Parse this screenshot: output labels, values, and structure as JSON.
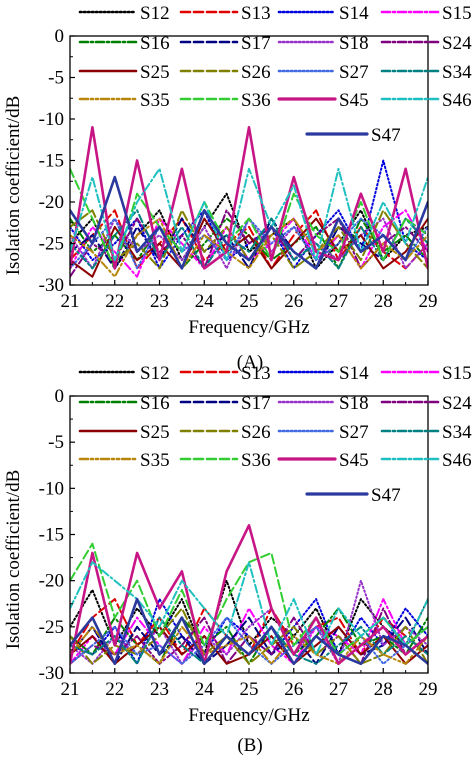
{
  "chart_data": [
    {
      "panel_label": "(A)",
      "type": "line",
      "xlabel": "Frequency/GHz",
      "ylabel": "Isolation coefficient/dB",
      "xlim": [
        21,
        29
      ],
      "ylim": [
        -30,
        0
      ],
      "x_ticks": [
        "21",
        "22",
        "23",
        "24",
        "25",
        "26",
        "27",
        "28",
        "29"
      ],
      "y_ticks": [
        "0",
        "-5",
        "-10",
        "-15",
        "-20",
        "-25",
        "-30"
      ],
      "grid": false,
      "legend_position": "top (inside plot)",
      "x": [
        21.0,
        21.5,
        22.0,
        22.5,
        23.0,
        23.5,
        24.0,
        24.5,
        25.0,
        25.5,
        26.0,
        26.5,
        27.0,
        27.5,
        28.0,
        28.5,
        29.0
      ],
      "series": [
        {
          "name": "S12",
          "color": "#000000",
          "dash": "dot",
          "values": [
            -25,
            -22,
            -28,
            -24,
            -21,
            -27,
            -23,
            -19,
            -26,
            -24,
            -22,
            -28,
            -25,
            -21,
            -27,
            -24,
            -23
          ]
        },
        {
          "name": "S13",
          "color": "#e00000",
          "dash": "dash",
          "values": [
            -27,
            -24,
            -21,
            -28,
            -25,
            -22,
            -27,
            -25,
            -23,
            -28,
            -24,
            -21,
            -27,
            -23,
            -26,
            -28,
            -25
          ]
        },
        {
          "name": "S14",
          "color": "#0000e0",
          "dash": "dot",
          "values": [
            -23,
            -27,
            -25,
            -22,
            -28,
            -24,
            -21,
            -27,
            -25,
            -23,
            -28,
            -24,
            -21,
            -26,
            -15,
            -25,
            -27
          ]
        },
        {
          "name": "S15",
          "color": "#ff00ff",
          "dash": "dashdot",
          "values": [
            -28,
            -23,
            -26,
            -29,
            -22,
            -25,
            -28,
            -23,
            -27,
            -25,
            -22,
            -27,
            -24,
            -28,
            -23,
            -21,
            -26
          ]
        },
        {
          "name": "S16",
          "color": "#008000",
          "dash": "dashdot",
          "values": [
            -22,
            -26,
            -24,
            -27,
            -23,
            -28,
            -25,
            -22,
            -24,
            -27,
            -25,
            -23,
            -28,
            -22,
            -26,
            -24,
            -27
          ]
        },
        {
          "name": "S17",
          "color": "#000080",
          "dash": "dash",
          "values": [
            -26,
            -24,
            -28,
            -23,
            -27,
            -22,
            -26,
            -24,
            -28,
            -22,
            -26,
            -28,
            -23,
            -25,
            -27,
            -22,
            -24
          ]
        },
        {
          "name": "S18",
          "color": "#9932cc",
          "dash": "dot",
          "values": [
            -24,
            -28,
            -22,
            -26,
            -24,
            -27,
            -23,
            -28,
            -22,
            -26,
            -23,
            -25,
            -27,
            -24,
            -22,
            -28,
            -25
          ]
        },
        {
          "name": "S24",
          "color": "#800080",
          "dash": "dashdot",
          "values": [
            -29,
            -25,
            -27,
            -22,
            -26,
            -24,
            -28,
            -21,
            -25,
            -23,
            -27,
            -24,
            -22,
            -28,
            -25,
            -23,
            -26
          ]
        },
        {
          "name": "S25",
          "color": "#8b0000",
          "dash": "solid",
          "values": [
            -27,
            -29,
            -23,
            -27,
            -25,
            -28,
            -22,
            -26,
            -24,
            -28,
            -25,
            -22,
            -26,
            -24,
            -28,
            -26,
            -22
          ]
        },
        {
          "name": "S26",
          "color": "#808000",
          "dash": "dash",
          "values": [
            -23,
            -21,
            -27,
            -25,
            -28,
            -21,
            -26,
            -23,
            -27,
            -24,
            -28,
            -26,
            -23,
            -27,
            -21,
            -25,
            -28
          ]
        },
        {
          "name": "S27",
          "color": "#4169e1",
          "dash": "dot",
          "values": [
            -28,
            -25,
            -22,
            -28,
            -23,
            -26,
            -24,
            -27,
            -22,
            -25,
            -23,
            -27,
            -25,
            -22,
            -24,
            -27,
            -23
          ]
        },
        {
          "name": "S34",
          "color": "#008080",
          "dash": "dashdot",
          "values": [
            -25,
            -28,
            -24,
            -21,
            -27,
            -23,
            -28,
            -24,
            -26,
            -22,
            -27,
            -25,
            -28,
            -23,
            -27,
            -22,
            -25
          ]
        },
        {
          "name": "S35",
          "color": "#b8860b",
          "dash": "dashdotdot",
          "values": [
            -24,
            -26,
            -29,
            -24,
            -22,
            -28,
            -24,
            -26,
            -28,
            -24,
            -22,
            -26,
            -24,
            -28,
            -25,
            -27,
            -24
          ]
        },
        {
          "name": "S36",
          "color": "#32cd32",
          "dash": "dash",
          "values": [
            -16,
            -22,
            -28,
            -19,
            -23,
            -26,
            -20,
            -25,
            -22,
            -27,
            -19,
            -24,
            -26,
            -20,
            -27,
            -22,
            -24
          ]
        },
        {
          "name": "S45",
          "color": "#c71585",
          "dash": "solid",
          "values": [
            -28,
            -11,
            -28,
            -15,
            -27,
            -16,
            -28,
            -26,
            -11,
            -27,
            -17,
            -26,
            -27,
            -19,
            -26,
            -16,
            -28
          ]
        },
        {
          "name": "S46",
          "color": "#20c0c0",
          "dash": "dashdot",
          "values": [
            -26,
            -17,
            -27,
            -20,
            -16,
            -26,
            -20,
            -27,
            -16,
            -23,
            -18,
            -27,
            -16,
            -26,
            -20,
            -25,
            -17
          ]
        },
        {
          "name": "S47",
          "color": "#2b3a9e",
          "dash": "solid",
          "values": [
            -21,
            -25,
            -17,
            -26,
            -23,
            -28,
            -21,
            -25,
            -27,
            -23,
            -26,
            -28,
            -22,
            -26,
            -24,
            -27,
            -20
          ]
        }
      ]
    },
    {
      "panel_label": "(B)",
      "type": "line",
      "xlabel": "Frequency/GHz",
      "ylabel": "Isolation coefficient/dB",
      "xlim": [
        21,
        29
      ],
      "ylim": [
        -30,
        0
      ],
      "x_ticks": [
        "21",
        "22",
        "23",
        "24",
        "25",
        "26",
        "27",
        "28",
        "29"
      ],
      "y_ticks": [
        "0",
        "-5",
        "-10",
        "-15",
        "-20",
        "-25",
        "-30"
      ],
      "grid": false,
      "legend_position": "top (inside plot)",
      "x": [
        21.0,
        21.5,
        22.0,
        22.5,
        23.0,
        23.5,
        24.0,
        24.5,
        25.0,
        25.5,
        26.0,
        26.5,
        27.0,
        27.5,
        28.0,
        28.5,
        29.0
      ],
      "series": [
        {
          "name": "S12",
          "color": "#000000",
          "dash": "dot",
          "values": [
            -25,
            -21,
            -27,
            -23,
            -26,
            -22,
            -28,
            -20,
            -27,
            -24,
            -26,
            -23,
            -28,
            -22,
            -25,
            -27,
            -22
          ]
        },
        {
          "name": "S13",
          "color": "#e00000",
          "dash": "dash",
          "values": [
            -28,
            -24,
            -22,
            -27,
            -24,
            -28,
            -23,
            -26,
            -28,
            -23,
            -27,
            -25,
            -24,
            -28,
            -24,
            -26,
            -28
          ]
        },
        {
          "name": "S14",
          "color": "#0000e0",
          "dash": "dot",
          "values": [
            -27,
            -28,
            -25,
            -29,
            -22,
            -26,
            -28,
            -24,
            -26,
            -28,
            -25,
            -22,
            -28,
            -24,
            -27,
            -23,
            -26
          ]
        },
        {
          "name": "S15",
          "color": "#ff00ff",
          "dash": "dashdot",
          "values": [
            -29,
            -26,
            -28,
            -24,
            -27,
            -29,
            -25,
            -28,
            -23,
            -27,
            -29,
            -25,
            -26,
            -28,
            -22,
            -27,
            -25
          ]
        },
        {
          "name": "S16",
          "color": "#008000",
          "dash": "dashdot",
          "values": [
            -26,
            -28,
            -24,
            -27,
            -29,
            -24,
            -27,
            -25,
            -29,
            -25,
            -28,
            -26,
            -23,
            -27,
            -26,
            -28,
            -24
          ]
        },
        {
          "name": "S17",
          "color": "#000080",
          "dash": "dash",
          "values": [
            -28,
            -25,
            -29,
            -25,
            -28,
            -26,
            -29,
            -27,
            -24,
            -28,
            -26,
            -29,
            -25,
            -28,
            -27,
            -24,
            -28
          ]
        },
        {
          "name": "S18",
          "color": "#9932cc",
          "dash": "dot",
          "values": [
            -27,
            -29,
            -26,
            -28,
            -25,
            -29,
            -26,
            -28,
            -25,
            -23,
            -28,
            -25,
            -29,
            -20,
            -27,
            -25,
            -27
          ]
        },
        {
          "name": "S24",
          "color": "#800080",
          "dash": "dashdot",
          "values": [
            -29,
            -27,
            -28,
            -26,
            -29,
            -27,
            -24,
            -29,
            -26,
            -28,
            -24,
            -28,
            -26,
            -29,
            -23,
            -28,
            -26
          ]
        },
        {
          "name": "S25",
          "color": "#8b0000",
          "dash": "solid",
          "values": [
            -28,
            -26,
            -29,
            -27,
            -25,
            -28,
            -26,
            -29,
            -28,
            -26,
            -29,
            -27,
            -25,
            -28,
            -26,
            -29,
            -27
          ]
        },
        {
          "name": "S26",
          "color": "#808000",
          "dash": "dash",
          "values": [
            -26,
            -29,
            -27,
            -28,
            -26,
            -23,
            -28,
            -26,
            -29,
            -27,
            -25,
            -28,
            -26,
            -29,
            -28,
            -25,
            -29
          ]
        },
        {
          "name": "S27",
          "color": "#4169e1",
          "dash": "dot",
          "values": [
            -29,
            -27,
            -25,
            -28,
            -27,
            -29,
            -27,
            -24,
            -27,
            -29,
            -27,
            -25,
            -28,
            -26,
            -29,
            -27,
            -25
          ]
        },
        {
          "name": "S34",
          "color": "#008080",
          "dash": "dashdot",
          "values": [
            -27,
            -28,
            -26,
            -29,
            -24,
            -27,
            -29,
            -26,
            -28,
            -25,
            -28,
            -29,
            -27,
            -25,
            -28,
            -26,
            -28
          ]
        },
        {
          "name": "S35",
          "color": "#b8860b",
          "dash": "dashdotdot",
          "values": [
            -28,
            -25,
            -28,
            -27,
            -29,
            -25,
            -28,
            -27,
            -26,
            -29,
            -26,
            -28,
            -29,
            -26,
            -28,
            -29,
            -26
          ]
        },
        {
          "name": "S36",
          "color": "#32cd32",
          "dash": "dash",
          "values": [
            -20,
            -16,
            -24,
            -20,
            -26,
            -21,
            -27,
            -22,
            -18,
            -17,
            -27,
            -24,
            -28,
            -26,
            -24,
            -27,
            -25
          ]
        },
        {
          "name": "S45",
          "color": "#c71585",
          "dash": "solid",
          "values": [
            -29,
            -17,
            -27,
            -17,
            -23,
            -19,
            -29,
            -19,
            -14,
            -23,
            -28,
            -24,
            -29,
            -27,
            -25,
            -28,
            -26
          ]
        },
        {
          "name": "S46",
          "color": "#20c0c0",
          "dash": "dashdot",
          "values": [
            -23,
            -18,
            -20,
            -22,
            -25,
            -20,
            -23,
            -26,
            -18,
            -27,
            -22,
            -28,
            -23,
            -26,
            -24,
            -27,
            -22
          ]
        },
        {
          "name": "S47",
          "color": "#2b3a9e",
          "dash": "solid",
          "values": [
            -27,
            -24,
            -29,
            -22,
            -28,
            -24,
            -29,
            -26,
            -28,
            -25,
            -29,
            -26,
            -28,
            -29,
            -26,
            -27,
            -29
          ]
        }
      ]
    }
  ]
}
